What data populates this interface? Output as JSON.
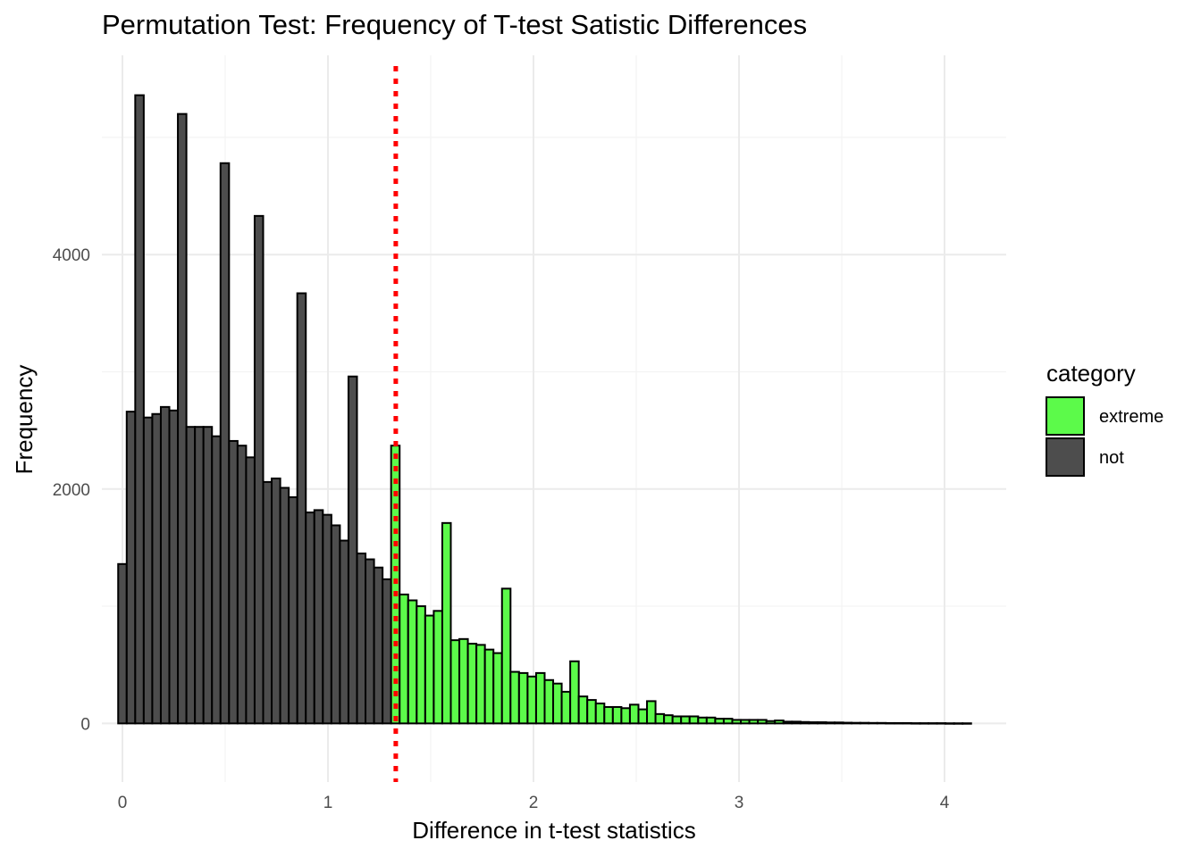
{
  "chart_data": {
    "type": "bar",
    "title": "Permutation Test: Frequency of T-test Satistic Differences",
    "xlabel": "Difference in t-test statistics",
    "ylabel": "Frequency",
    "xlim": [
      -0.1,
      4.3
    ],
    "ylim": [
      -500,
      5700
    ],
    "x_ticks": [
      0,
      1,
      2,
      3,
      4
    ],
    "x_tick_labels": [
      "0",
      "1",
      "2",
      "3",
      "4"
    ],
    "y_ticks": [
      0,
      2000,
      4000
    ],
    "y_tick_labels": [
      "0",
      "2000",
      "4000"
    ],
    "grid": true,
    "bin_width": 0.0415,
    "bin_start": -0.0207,
    "threshold": 1.33,
    "threshold_color": "#ff0000",
    "legend": {
      "title": "category",
      "placement": "right",
      "entries": [
        {
          "name": "extreme",
          "color": "#5cfa4a"
        },
        {
          "name": "not",
          "color": "#4d4d4d"
        }
      ]
    },
    "series": [
      {
        "name": "not",
        "color": "#4d4d4d",
        "values": [
          1360,
          2660,
          5360,
          2610,
          2640,
          2700,
          2670,
          5200,
          2530,
          2530,
          2530,
          2450,
          4780,
          2410,
          2370,
          2270,
          4330,
          2060,
          2090,
          2010,
          1930,
          3670,
          1800,
          1820,
          1780,
          1690,
          1560,
          2960,
          1450,
          1400,
          1330,
          1230
        ]
      },
      {
        "name": "extreme",
        "color": "#5cfa4a",
        "values": [
          2370,
          1100,
          1050,
          1000,
          920,
          960,
          1710,
          710,
          720,
          680,
          670,
          630,
          600,
          1150,
          440,
          430,
          400,
          430,
          370,
          340,
          270,
          530,
          230,
          200,
          170,
          140,
          140,
          130,
          160,
          120,
          190,
          80,
          70,
          60,
          60,
          60,
          50,
          50,
          40,
          40,
          30,
          30,
          30,
          30,
          20,
          25,
          15,
          15,
          12,
          10,
          10,
          8,
          8,
          6,
          5,
          5,
          4,
          4,
          3,
          3,
          3,
          2,
          2,
          2,
          2,
          1,
          1,
          1
        ]
      }
    ]
  }
}
